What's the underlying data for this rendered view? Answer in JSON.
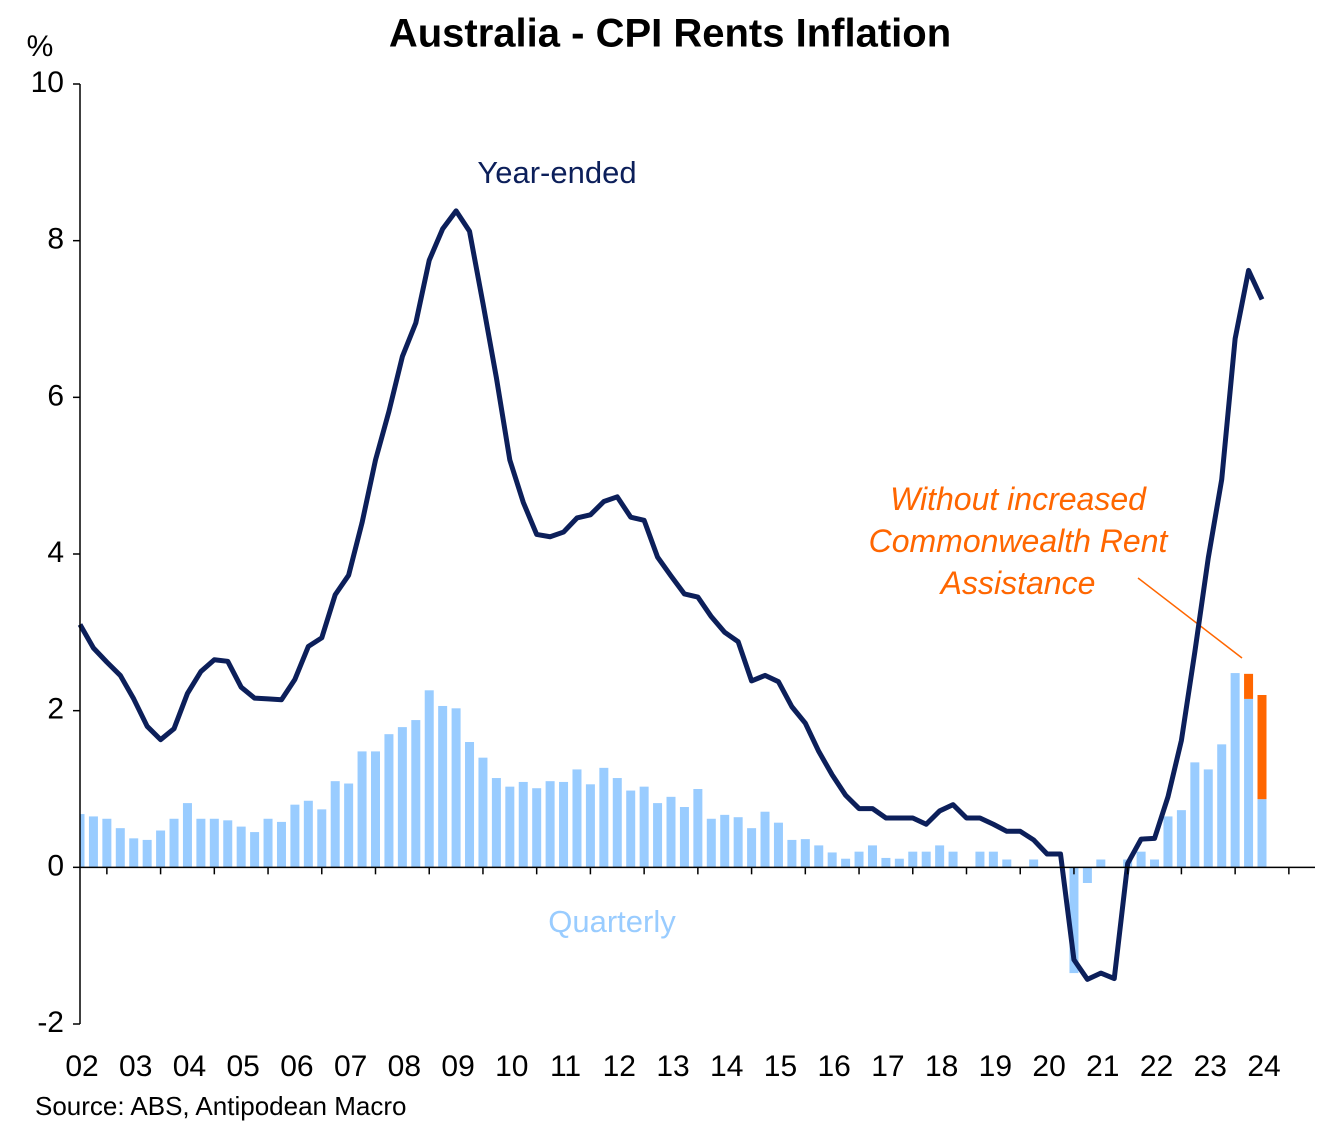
{
  "chart_data": {
    "type": "bar-line",
    "title": "Australia  - CPI Rents Inflation",
    "y_unit": "%",
    "source": "Source: ABS, Antipodean Macro",
    "categories": [
      "02",
      null,
      null,
      null,
      "03",
      null,
      null,
      null,
      "04",
      null,
      null,
      null,
      "05",
      null,
      null,
      null,
      "06",
      null,
      null,
      null,
      "07",
      null,
      null,
      null,
      "08",
      null,
      null,
      null,
      "09",
      null,
      null,
      null,
      "10",
      null,
      null,
      null,
      "11",
      null,
      null,
      null,
      "12",
      null,
      null,
      null,
      "13",
      null,
      null,
      null,
      "14",
      null,
      null,
      null,
      "15",
      null,
      null,
      null,
      "16",
      null,
      null,
      null,
      "17",
      null,
      null,
      null,
      "18",
      null,
      null,
      null,
      "19",
      null,
      null,
      null,
      "20",
      null,
      null,
      null,
      "21",
      null,
      null,
      null,
      "22",
      null,
      null,
      null,
      "23",
      null,
      null,
      null,
      "24"
    ],
    "ylim": [
      -2,
      10
    ],
    "yticks": [
      -2,
      0,
      2,
      4,
      6,
      8,
      10
    ],
    "series": [
      {
        "name": "Year-ended",
        "type": "line",
        "color": "#0c1f5a",
        "values": [
          3.1,
          2.8,
          2.62,
          2.45,
          2.15,
          1.8,
          1.63,
          1.77,
          2.22,
          2.5,
          2.65,
          2.63,
          2.3,
          2.16,
          2.15,
          2.14,
          2.4,
          2.82,
          2.93,
          3.48,
          3.73,
          4.4,
          5.2,
          5.82,
          6.52,
          6.95,
          7.75,
          8.15,
          8.38,
          8.12,
          7.2,
          6.25,
          5.2,
          4.66,
          4.25,
          4.22,
          4.28,
          4.46,
          4.5,
          4.67,
          4.73,
          4.47,
          4.43,
          3.96,
          3.72,
          3.49,
          3.45,
          3.2,
          3.0,
          2.88,
          2.38,
          2.45,
          2.37,
          2.05,
          1.84,
          1.48,
          1.18,
          0.92,
          0.75,
          0.75,
          0.63,
          0.63,
          0.63,
          0.55,
          0.72,
          0.8,
          0.63,
          0.63,
          0.55,
          0.46,
          0.46,
          0.35,
          0.17,
          0.17,
          -1.18,
          -1.43,
          -1.35,
          -1.42,
          0.05,
          0.36,
          0.37,
          0.9,
          1.62,
          2.75,
          3.95,
          4.95,
          6.75,
          7.62,
          7.25
        ]
      },
      {
        "name": "Quarterly",
        "type": "bar",
        "color": "#99ccff",
        "values": [
          0.68,
          0.65,
          0.62,
          0.5,
          0.37,
          0.35,
          0.47,
          0.62,
          0.82,
          0.62,
          0.62,
          0.6,
          0.52,
          0.45,
          0.62,
          0.58,
          0.8,
          0.85,
          0.74,
          1.1,
          1.07,
          1.48,
          1.48,
          1.7,
          1.79,
          1.88,
          2.26,
          2.06,
          2.03,
          1.6,
          1.4,
          1.14,
          1.03,
          1.09,
          1.01,
          1.1,
          1.09,
          1.25,
          1.06,
          1.27,
          1.14,
          0.98,
          1.03,
          0.82,
          0.9,
          0.77,
          1.0,
          0.62,
          0.67,
          0.64,
          0.5,
          0.71,
          0.57,
          0.35,
          0.36,
          0.28,
          0.19,
          0.11,
          0.2,
          0.28,
          0.12,
          0.11,
          0.2,
          0.2,
          0.28,
          0.2,
          0.0,
          0.2,
          0.2,
          0.1,
          0.0,
          0.1,
          0.0,
          0.0,
          -1.35,
          -0.2,
          0.1,
          0.0,
          0.1,
          0.2,
          0.1,
          0.65,
          0.73,
          1.34,
          1.25,
          1.57,
          2.48,
          2.15,
          0.87
        ]
      },
      {
        "name": "Without increased Commonwealth Rent Assistance",
        "type": "stacked-bar",
        "color": "#ff6600",
        "values": [
          null,
          null,
          null,
          null,
          null,
          null,
          null,
          null,
          null,
          null,
          null,
          null,
          null,
          null,
          null,
          null,
          null,
          null,
          null,
          null,
          null,
          null,
          null,
          null,
          null,
          null,
          null,
          null,
          null,
          null,
          null,
          null,
          null,
          null,
          null,
          null,
          null,
          null,
          null,
          null,
          null,
          null,
          null,
          null,
          null,
          null,
          null,
          null,
          null,
          null,
          null,
          null,
          null,
          null,
          null,
          null,
          null,
          null,
          null,
          null,
          null,
          null,
          null,
          null,
          null,
          null,
          null,
          null,
          null,
          null,
          null,
          null,
          null,
          null,
          null,
          null,
          null,
          null,
          null,
          null,
          null,
          null,
          null,
          null,
          null,
          null,
          null,
          0.32,
          1.33
        ]
      }
    ]
  }
}
